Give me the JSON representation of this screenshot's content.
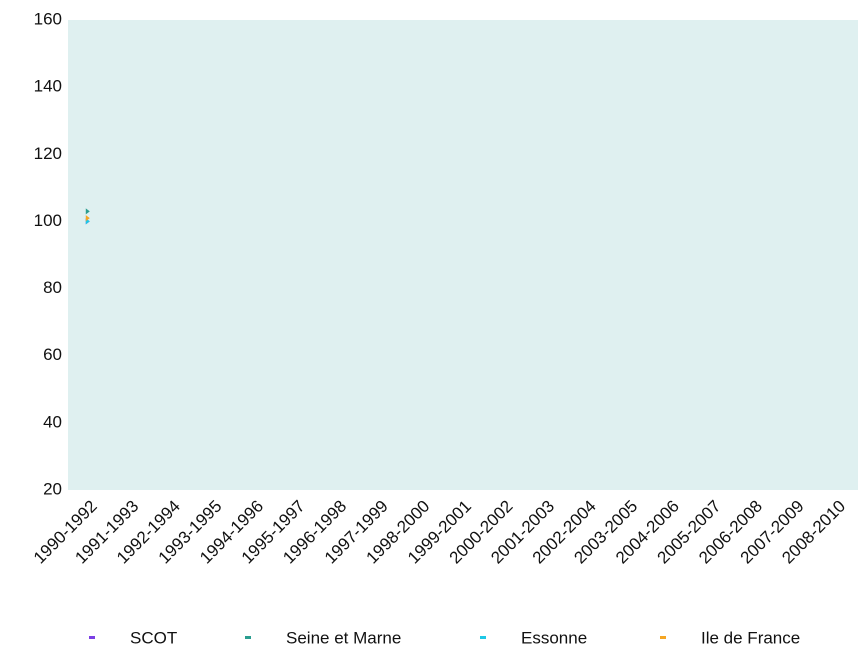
{
  "chart_data": {
    "type": "line",
    "categories": [
      "1990-1992",
      "1991-1993",
      "1992-1994",
      "1993-1995",
      "1994-1996",
      "1995-1997",
      "1996-1998",
      "1997-1999",
      "1998-2000",
      "1999-2001",
      "2000-2002",
      "2001-2003",
      "2002-2004",
      "2003-2005",
      "2004-2006",
      "2005-2007",
      "2006-2008",
      "2007-2009",
      "2008-2010"
    ],
    "series": [
      {
        "name": "SCOT",
        "color": "#7b3fe4",
        "values": [
          100,
          null,
          null,
          null,
          null,
          null,
          null,
          null,
          null,
          null,
          null,
          null,
          null,
          null,
          null,
          null,
          null,
          null,
          null
        ]
      },
      {
        "name": "Seine et Marne",
        "color": "#2a9d8f",
        "values": [
          103,
          null,
          null,
          null,
          null,
          null,
          null,
          null,
          null,
          null,
          null,
          null,
          null,
          null,
          null,
          null,
          null,
          null,
          null
        ]
      },
      {
        "name": "Essonne",
        "color": "#1ec8e6",
        "values": [
          100,
          null,
          null,
          null,
          null,
          null,
          null,
          null,
          null,
          null,
          null,
          null,
          null,
          null,
          null,
          null,
          null,
          null,
          null
        ]
      },
      {
        "name": "Ile de France",
        "color": "#f5a623",
        "values": [
          101,
          null,
          null,
          null,
          null,
          null,
          null,
          null,
          null,
          null,
          null,
          null,
          null,
          null,
          null,
          null,
          null,
          null,
          null
        ]
      }
    ],
    "ylim": [
      20,
      160
    ],
    "yticks": [
      20,
      40,
      60,
      80,
      100,
      120,
      140,
      160
    ],
    "plot_background": "#dff0f0"
  }
}
